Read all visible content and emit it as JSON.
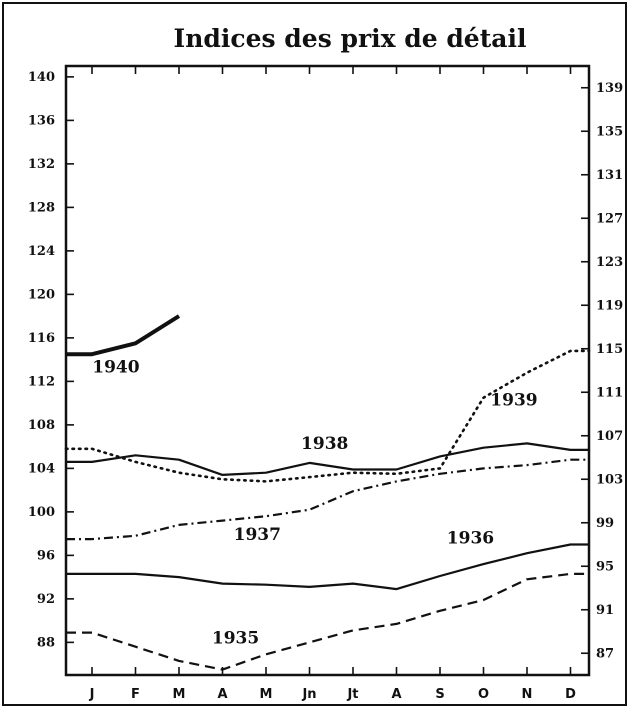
{
  "chart_data": {
    "type": "line",
    "title": "Indices des prix de détail",
    "xlabel": "",
    "ylabel": "",
    "categories": [
      "J",
      "F",
      "M",
      "A",
      "M",
      "Jn",
      "Jt",
      "A",
      "S",
      "O",
      "N",
      "D"
    ],
    "ylim": [
      85,
      141
    ],
    "left_ticks": [
      {
        "value": 140,
        "label": "140"
      },
      {
        "value": 136,
        "label": "136"
      },
      {
        "value": 132,
        "label": "132"
      },
      {
        "value": 128,
        "label": "128"
      },
      {
        "value": 124,
        "label": "124"
      },
      {
        "value": 120,
        "label": "120"
      },
      {
        "value": 116,
        "label": "116"
      },
      {
        "value": 112,
        "label": "112"
      },
      {
        "value": 108,
        "label": "108"
      },
      {
        "value": 104,
        "label": "104"
      },
      {
        "value": 100,
        "label": "100"
      },
      {
        "value": 96,
        "label": "96"
      },
      {
        "value": 92,
        "label": "92"
      },
      {
        "value": 88,
        "label": "88"
      }
    ],
    "right_ticks": [
      {
        "value": 139,
        "label": "139"
      },
      {
        "value": 135,
        "label": "135"
      },
      {
        "value": 131,
        "label": "131"
      },
      {
        "value": 127,
        "label": "127"
      },
      {
        "value": 123,
        "label": "123"
      },
      {
        "value": 119,
        "label": "119"
      },
      {
        "value": 115,
        "label": "115"
      },
      {
        "value": 111,
        "label": "111"
      },
      {
        "value": 107,
        "label": "107"
      },
      {
        "value": 103,
        "label": "103"
      },
      {
        "value": 99,
        "label": "99"
      },
      {
        "value": 95,
        "label": "95"
      },
      {
        "value": 91,
        "label": "91"
      },
      {
        "value": 87,
        "label": "87"
      }
    ],
    "grid": false,
    "legend": "none",
    "series": [
      {
        "name": "1940",
        "style": "solid-thick",
        "values": [
          114.5,
          115.5,
          118,
          null,
          null,
          null,
          null,
          null,
          null,
          null,
          null,
          null
        ],
        "label_at": [
          0.55,
          112.8
        ]
      },
      {
        "name": "1939",
        "style": "dotted",
        "values": [
          105.8,
          104.6,
          103.6,
          103,
          102.8,
          103.2,
          103.6,
          103.5,
          104,
          110.5,
          112.8,
          114.8
        ],
        "label_at": [
          9.7,
          109.8
        ]
      },
      {
        "name": "1938",
        "style": "solid",
        "values": [
          104.6,
          105.2,
          104.8,
          103.4,
          103.6,
          104.5,
          103.9,
          103.9,
          105.1,
          105.9,
          106.3,
          105.7
        ],
        "label_at": [
          5.35,
          105.8
        ]
      },
      {
        "name": "1937",
        "style": "dash-dot",
        "values": [
          97.5,
          97.8,
          98.8,
          99.2,
          99.6,
          100.2,
          101.9,
          102.8,
          103.5,
          104,
          104.3,
          104.8
        ],
        "label_at": [
          3.8,
          97.4
        ]
      },
      {
        "name": "1936",
        "style": "solid",
        "values": [
          94.3,
          94.3,
          94,
          93.4,
          93.3,
          93.1,
          93.4,
          92.9,
          94.1,
          95.2,
          96.2,
          97
        ],
        "label_at": [
          8.7,
          97.1
        ]
      },
      {
        "name": "1935",
        "style": "dashed",
        "values": [
          88.9,
          87.6,
          86.3,
          85.5,
          86.9,
          88,
          89.1,
          89.7,
          90.9,
          91.9,
          93.8,
          94.3
        ],
        "label_at": [
          3.3,
          87.9
        ]
      }
    ]
  },
  "colors": {
    "ink": "#111111",
    "background": "#ffffff"
  }
}
